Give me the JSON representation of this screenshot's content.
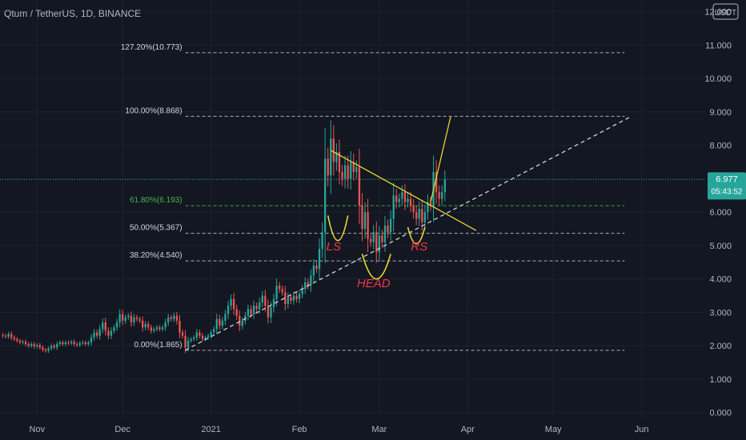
{
  "header": {
    "symbol_label": "Qtum / TetherUS, 1D, BINANCE",
    "currency_button": "USDT"
  },
  "colors": {
    "background": "#131722",
    "axis_text": "#b2b5be",
    "grid": "#1e222d",
    "candle_up": "#26a69a",
    "candle_down": "#ef5350",
    "fib_line": "#d1d4dc",
    "fib_618_text": "#4caf50",
    "trend_line": "#e8d62e",
    "annotation_red": "#f23645",
    "price_badge": "#26a69a"
  },
  "price_badge": {
    "price": "6.977",
    "countdown": "05:43:52"
  },
  "chart_data": {
    "type": "candlestick",
    "title": "Qtum / TetherUS, 1D, BINANCE",
    "y_axis": {
      "ticks": [
        "0.000",
        "1.000",
        "2.000",
        "3.000",
        "4.000",
        "5.000",
        "6.000",
        "7.000",
        "8.000",
        "9.000",
        "10.000",
        "11.000",
        "12.000"
      ],
      "tick_values": [
        0,
        1,
        2,
        3,
        4,
        5,
        6,
        7,
        8,
        9,
        10,
        11,
        12
      ],
      "ylim": [
        -0.15,
        12.35
      ],
      "position": "right"
    },
    "x_axis": {
      "ticks": [
        {
          "label": "Nov",
          "date": "2020-11-01"
        },
        {
          "label": "Dec",
          "date": "2020-12-01"
        },
        {
          "label": "2021",
          "date": "2021-01-01"
        },
        {
          "label": "Feb",
          "date": "2021-02-01"
        },
        {
          "label": "Mar",
          "date": "2021-03-01"
        },
        {
          "label": "Apr",
          "date": "2021-04-01"
        },
        {
          "label": "May",
          "date": "2021-05-01"
        },
        {
          "label": "Jun",
          "date": "2021-06-01"
        }
      ],
      "xlim": [
        "2020-10-19",
        "2021-06-23"
      ]
    },
    "candles": [
      {
        "date": "2020-10-20",
        "close": 2.3
      },
      {
        "date": "2020-10-21",
        "close": 2.28
      },
      {
        "date": "2020-10-22",
        "close": 2.35
      },
      {
        "date": "2020-10-23",
        "close": 2.25
      },
      {
        "date": "2020-10-24",
        "close": 2.2
      },
      {
        "date": "2020-10-25",
        "close": 2.15
      },
      {
        "date": "2020-10-26",
        "close": 2.1
      },
      {
        "date": "2020-10-27",
        "close": 2.12
      },
      {
        "date": "2020-10-28",
        "close": 2.05
      },
      {
        "date": "2020-10-29",
        "close": 2.0
      },
      {
        "date": "2020-10-30",
        "close": 2.05
      },
      {
        "date": "2020-10-31",
        "close": 1.98
      },
      {
        "date": "2020-11-01",
        "close": 2.02
      },
      {
        "date": "2020-11-02",
        "close": 1.95
      },
      {
        "date": "2020-11-03",
        "close": 1.88
      },
      {
        "date": "2020-11-04",
        "close": 1.85
      },
      {
        "date": "2020-11-05",
        "close": 1.92
      },
      {
        "date": "2020-11-06",
        "close": 2.0
      },
      {
        "date": "2020-11-07",
        "close": 1.95
      },
      {
        "date": "2020-11-08",
        "close": 2.05
      },
      {
        "date": "2020-11-09",
        "close": 2.1
      },
      {
        "date": "2020-11-10",
        "close": 2.05
      },
      {
        "date": "2020-11-11",
        "close": 2.1
      },
      {
        "date": "2020-11-12",
        "close": 2.08
      },
      {
        "date": "2020-11-13",
        "close": 2.12
      },
      {
        "date": "2020-11-14",
        "close": 2.05
      },
      {
        "date": "2020-11-15",
        "close": 2.02
      },
      {
        "date": "2020-11-16",
        "close": 2.08
      },
      {
        "date": "2020-11-17",
        "close": 2.1
      },
      {
        "date": "2020-11-18",
        "close": 2.05
      },
      {
        "date": "2020-11-19",
        "close": 2.1
      },
      {
        "date": "2020-11-20",
        "close": 2.25
      },
      {
        "date": "2020-11-21",
        "close": 2.4
      },
      {
        "date": "2020-11-22",
        "close": 2.3
      },
      {
        "date": "2020-11-23",
        "close": 2.5
      },
      {
        "date": "2020-11-24",
        "close": 2.7
      },
      {
        "date": "2020-11-25",
        "close": 2.45
      },
      {
        "date": "2020-11-26",
        "close": 2.3
      },
      {
        "date": "2020-11-27",
        "close": 2.45
      },
      {
        "date": "2020-11-28",
        "close": 2.55
      },
      {
        "date": "2020-11-29",
        "close": 2.7
      },
      {
        "date": "2020-11-30",
        "close": 2.95
      },
      {
        "date": "2020-12-01",
        "close": 2.75
      },
      {
        "date": "2020-12-02",
        "close": 2.85
      },
      {
        "date": "2020-12-03",
        "close": 2.9
      },
      {
        "date": "2020-12-04",
        "close": 2.7
      },
      {
        "date": "2020-12-05",
        "close": 2.85
      },
      {
        "date": "2020-12-06",
        "close": 2.8
      },
      {
        "date": "2020-12-07",
        "close": 2.75
      },
      {
        "date": "2020-12-08",
        "close": 2.55
      },
      {
        "date": "2020-12-09",
        "close": 2.65
      },
      {
        "date": "2020-12-10",
        "close": 2.55
      },
      {
        "date": "2020-12-11",
        "close": 2.45
      },
      {
        "date": "2020-12-12",
        "close": 2.5
      },
      {
        "date": "2020-12-13",
        "close": 2.55
      },
      {
        "date": "2020-12-14",
        "close": 2.5
      },
      {
        "date": "2020-12-15",
        "close": 2.55
      },
      {
        "date": "2020-12-16",
        "close": 2.7
      },
      {
        "date": "2020-12-17",
        "close": 2.85
      },
      {
        "date": "2020-12-18",
        "close": 2.8
      },
      {
        "date": "2020-12-19",
        "close": 2.9
      },
      {
        "date": "2020-12-20",
        "close": 2.75
      },
      {
        "date": "2020-12-21",
        "close": 2.4
      },
      {
        "date": "2020-12-22",
        "close": 2.3
      },
      {
        "date": "2020-12-23",
        "close": 1.95
      },
      {
        "date": "2020-12-24",
        "close": 2.15
      },
      {
        "date": "2020-12-25",
        "close": 2.2
      },
      {
        "date": "2020-12-26",
        "close": 2.25
      },
      {
        "date": "2020-12-27",
        "close": 2.4
      },
      {
        "date": "2020-12-28",
        "close": 2.3
      },
      {
        "date": "2020-12-29",
        "close": 2.2
      },
      {
        "date": "2020-12-30",
        "close": 2.25
      },
      {
        "date": "2020-12-31",
        "close": 2.3
      },
      {
        "date": "2021-01-01",
        "close": 2.4
      },
      {
        "date": "2021-01-02",
        "close": 2.5
      },
      {
        "date": "2021-01-03",
        "close": 2.8
      },
      {
        "date": "2021-01-04",
        "close": 2.6
      },
      {
        "date": "2021-01-05",
        "close": 2.75
      },
      {
        "date": "2021-01-06",
        "close": 2.95
      },
      {
        "date": "2021-01-07",
        "close": 3.2
      },
      {
        "date": "2021-01-08",
        "close": 3.4
      },
      {
        "date": "2021-01-09",
        "close": 3.1
      },
      {
        "date": "2021-01-10",
        "close": 2.9
      },
      {
        "date": "2021-01-11",
        "close": 2.6
      },
      {
        "date": "2021-01-12",
        "close": 2.75
      },
      {
        "date": "2021-01-13",
        "close": 2.9
      },
      {
        "date": "2021-01-14",
        "close": 3.1
      },
      {
        "date": "2021-01-15",
        "close": 2.95
      },
      {
        "date": "2021-01-16",
        "close": 3.2
      },
      {
        "date": "2021-01-17",
        "close": 3.1
      },
      {
        "date": "2021-01-18",
        "close": 3.3
      },
      {
        "date": "2021-01-19",
        "close": 3.5
      },
      {
        "date": "2021-01-20",
        "close": 3.2
      },
      {
        "date": "2021-01-21",
        "close": 2.85
      },
      {
        "date": "2021-01-22",
        "close": 3.15
      },
      {
        "date": "2021-01-23",
        "close": 3.4
      },
      {
        "date": "2021-01-24",
        "close": 3.8
      },
      {
        "date": "2021-01-25",
        "close": 3.7
      },
      {
        "date": "2021-01-26",
        "close": 3.6
      },
      {
        "date": "2021-01-27",
        "close": 3.25
      },
      {
        "date": "2021-01-28",
        "close": 3.45
      },
      {
        "date": "2021-01-29",
        "close": 3.35
      },
      {
        "date": "2021-01-30",
        "close": 3.5
      },
      {
        "date": "2021-01-31",
        "close": 3.4
      },
      {
        "date": "2021-02-01",
        "close": 3.55
      },
      {
        "date": "2021-02-02",
        "close": 3.7
      },
      {
        "date": "2021-02-03",
        "close": 3.9
      },
      {
        "date": "2021-02-04",
        "close": 3.8
      },
      {
        "date": "2021-02-05",
        "close": 4.1
      },
      {
        "date": "2021-02-06",
        "close": 4.4
      },
      {
        "date": "2021-02-07",
        "close": 4.3
      },
      {
        "date": "2021-02-08",
        "close": 4.9
      },
      {
        "date": "2021-02-09",
        "close": 5.4
      },
      {
        "date": "2021-02-10",
        "close": 7.6
      },
      {
        "date": "2021-02-11",
        "close": 7.1
      },
      {
        "date": "2021-02-12",
        "close": 8.2
      },
      {
        "date": "2021-02-13",
        "close": 7.5
      },
      {
        "date": "2021-02-14",
        "close": 7.8
      },
      {
        "date": "2021-02-15",
        "close": 7.2
      },
      {
        "date": "2021-02-16",
        "close": 7.0
      },
      {
        "date": "2021-02-17",
        "close": 7.4
      },
      {
        "date": "2021-02-18",
        "close": 7.0
      },
      {
        "date": "2021-02-19",
        "close": 7.5
      },
      {
        "date": "2021-02-20",
        "close": 7.2
      },
      {
        "date": "2021-02-21",
        "close": 7.35
      },
      {
        "date": "2021-02-22",
        "close": 6.2
      },
      {
        "date": "2021-02-23",
        "close": 5.5
      },
      {
        "date": "2021-02-24",
        "close": 6.0
      },
      {
        "date": "2021-02-25",
        "close": 5.2
      },
      {
        "date": "2021-02-26",
        "close": 5.1
      },
      {
        "date": "2021-02-27",
        "close": 5.4
      },
      {
        "date": "2021-02-28",
        "close": 4.8
      },
      {
        "date": "2021-03-01",
        "close": 5.3
      },
      {
        "date": "2021-03-02",
        "close": 5.1
      },
      {
        "date": "2021-03-03",
        "close": 5.6
      },
      {
        "date": "2021-03-04",
        "close": 5.4
      },
      {
        "date": "2021-03-05",
        "close": 5.8
      },
      {
        "date": "2021-03-06",
        "close": 6.5
      },
      {
        "date": "2021-03-07",
        "close": 6.3
      },
      {
        "date": "2021-03-08",
        "close": 6.4
      },
      {
        "date": "2021-03-09",
        "close": 6.6
      },
      {
        "date": "2021-03-10",
        "close": 6.3
      },
      {
        "date": "2021-03-11",
        "close": 6.4
      },
      {
        "date": "2021-03-12",
        "close": 6.2
      },
      {
        "date": "2021-03-13",
        "close": 6.0
      },
      {
        "date": "2021-03-14",
        "close": 5.8
      },
      {
        "date": "2021-03-15",
        "close": 6.1
      },
      {
        "date": "2021-03-16",
        "close": 5.7
      },
      {
        "date": "2021-03-17",
        "close": 6.0
      },
      {
        "date": "2021-03-18",
        "close": 6.3
      },
      {
        "date": "2021-03-19",
        "close": 6.2
      },
      {
        "date": "2021-03-20",
        "close": 7.2
      },
      {
        "date": "2021-03-21",
        "close": 6.6
      },
      {
        "date": "2021-03-22",
        "close": 6.4
      },
      {
        "date": "2021-03-23",
        "close": 6.6
      },
      {
        "date": "2021-03-24",
        "close": 6.977
      }
    ],
    "fibonacci_levels": [
      {
        "label": "127.20%(10.773)",
        "value": 10.773
      },
      {
        "label": "100.00%(8.868)",
        "value": 8.868
      },
      {
        "label": "61.80%(6.193)",
        "value": 6.193
      },
      {
        "label": "50.00%(5.367)",
        "value": 5.367
      },
      {
        "label": "38.20%(4.540)",
        "value": 4.54
      },
      {
        "label": "0.00%(1.865)",
        "value": 1.865
      }
    ],
    "fib_range": {
      "start": "2020-12-23",
      "end": "2021-05-26"
    },
    "current_price": 6.977,
    "trend_lines": [
      {
        "name": "support",
        "color": "white",
        "dashed": true,
        "points": [
          {
            "date": "2020-12-23",
            "value": 1.87
          },
          {
            "date": "2021-05-28",
            "value": 8.85
          }
        ]
      },
      {
        "name": "descending resistance",
        "color": "yellow",
        "dashed": false,
        "points": [
          {
            "date": "2021-02-12",
            "value": 7.85
          },
          {
            "date": "2021-04-04",
            "value": 5.45
          }
        ]
      },
      {
        "name": "breakout projection",
        "color": "yellow",
        "dashed": false,
        "points": [
          {
            "date": "2021-03-19",
            "value": 6.3
          },
          {
            "date": "2021-03-26",
            "value": 8.85
          }
        ]
      }
    ],
    "annotations": [
      {
        "text": "LS",
        "date": "2021-02-13",
        "value": 4.85
      },
      {
        "text": "HEAD",
        "date": "2021-02-27",
        "value": 3.75
      },
      {
        "text": "RS",
        "date": "2021-03-15",
        "value": 4.85
      }
    ],
    "pattern_arcs": [
      {
        "name": "left-shoulder",
        "date_start": "2021-02-11",
        "date_end": "2021-02-18",
        "top": 5.9,
        "bottom": 5.15
      },
      {
        "name": "head",
        "date_start": "2021-02-23",
        "date_end": "2021-03-05",
        "top": 4.75,
        "bottom": 4.0
      },
      {
        "name": "right-shoulder",
        "date_start": "2021-03-11",
        "date_end": "2021-03-17",
        "top": 5.55,
        "bottom": 5.05
      }
    ],
    "grid": true
  }
}
